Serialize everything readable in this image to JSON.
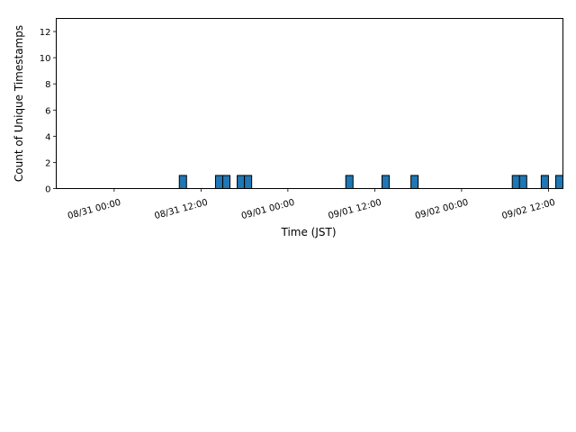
{
  "chart_data": {
    "type": "bar",
    "title": "",
    "xlabel": "Time (JST)",
    "ylabel": "Count of Unique Timestamps",
    "x_tick_labels": [
      "08/31 00:00",
      "08/31 12:00",
      "09/01 00:00",
      "09/01 12:00",
      "09/02 00:00",
      "09/02 12:00"
    ],
    "y_ticks": [
      0,
      2,
      4,
      6,
      8,
      10,
      12
    ],
    "xlim": [
      "08/30 16:00",
      "09/02 14:00"
    ],
    "ylim": [
      0,
      13
    ],
    "bar_width_hours": 1,
    "grid": false,
    "bars": [
      {
        "time": "08/31 09:00",
        "value": 1
      },
      {
        "time": "08/31 14:00",
        "value": 1
      },
      {
        "time": "08/31 15:00",
        "value": 1
      },
      {
        "time": "08/31 17:00",
        "value": 1
      },
      {
        "time": "08/31 18:00",
        "value": 1
      },
      {
        "time": "09/01 08:00",
        "value": 1
      },
      {
        "time": "09/01 13:00",
        "value": 1
      },
      {
        "time": "09/01 17:00",
        "value": 1
      },
      {
        "time": "09/02 07:00",
        "value": 1
      },
      {
        "time": "09/02 08:00",
        "value": 1
      },
      {
        "time": "09/02 11:00",
        "value": 1
      },
      {
        "time": "09/02 13:00",
        "value": 1
      }
    ],
    "bar_color": "#1f77b4",
    "edge_color": "#000000"
  }
}
